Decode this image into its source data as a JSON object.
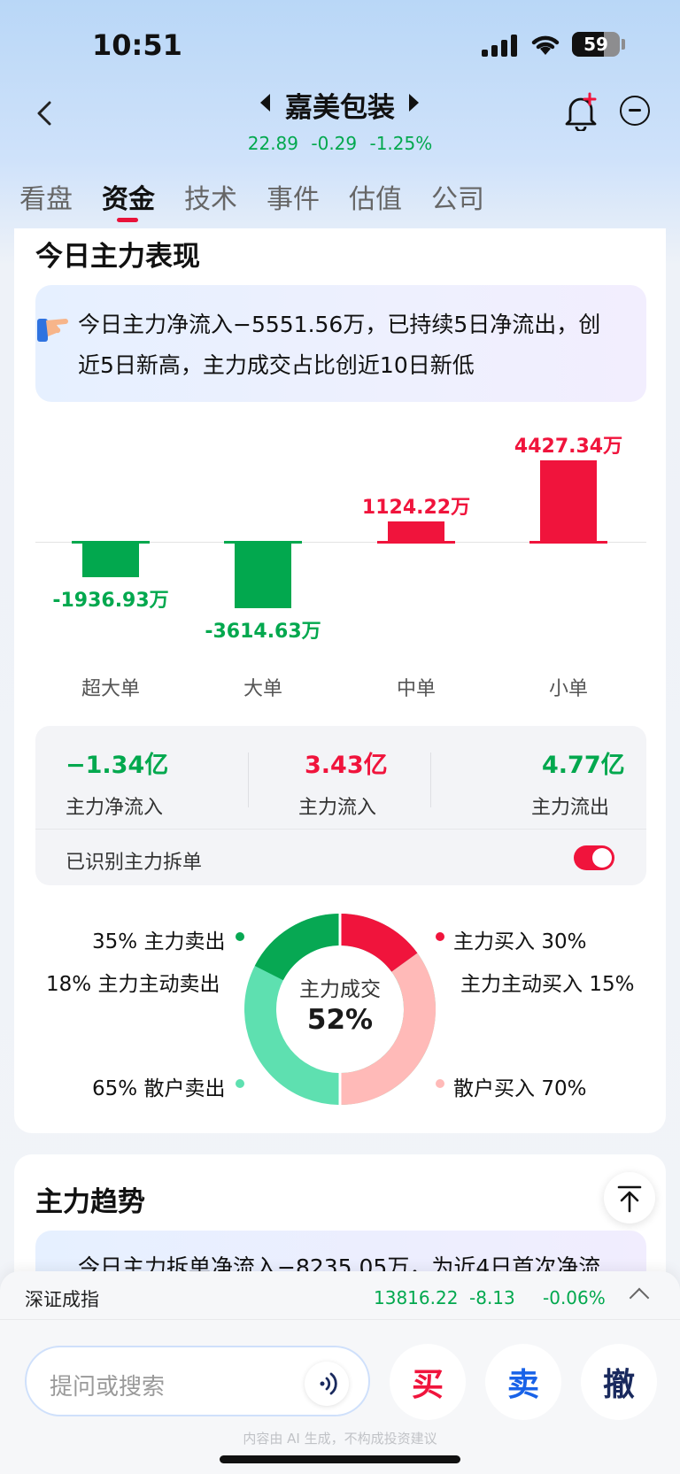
{
  "status_bar": {
    "time": "10:51",
    "battery": "59"
  },
  "header": {
    "stock_name": "嘉美包装",
    "price": "22.89",
    "change": "-0.29",
    "change_pct": "-1.25%"
  },
  "tabs": [
    "看盘",
    "资金",
    "技术",
    "事件",
    "估值",
    "公司"
  ],
  "active_tab": "资金",
  "today": {
    "title": "今日主力表现",
    "insight_line1": "今日主力净流入−5551.56万，已持续5日净流出，创",
    "insight_line2": "近5日新高，主力成交占比创近10日新低",
    "chart_data": {
      "type": "bar",
      "categories": [
        "超大单",
        "大单",
        "中单",
        "小单"
      ],
      "values": [
        -1936.93,
        -3614.63,
        1124.22,
        4427.34
      ],
      "value_labels": [
        "-1936.93万",
        "-3614.63万",
        "1124.22万",
        "4427.34万"
      ],
      "unit": "万",
      "colors": {
        "positive": "#f0143c",
        "negative": "#02a84e"
      }
    },
    "stats": {
      "net_inflow_value": "−1.34亿",
      "net_inflow_label": "主力净流入",
      "inflow_value": "3.43亿",
      "inflow_label": "主力流入",
      "outflow_value": "4.77亿",
      "outflow_label": "主力流出",
      "split_label": "已识别主力拆单",
      "split_enabled": true
    },
    "donut": {
      "center_label": "主力成交",
      "center_value": "52%",
      "main_sell": {
        "pct": "35%",
        "label": "主力卖出"
      },
      "main_active_sell": {
        "pct": "18%",
        "label": "主力主动卖出"
      },
      "retail_sell": {
        "pct": "65%",
        "label": "散户卖出"
      },
      "main_buy": {
        "pct": "30%",
        "label": "主力买入"
      },
      "main_active_buy": {
        "pct": "15%",
        "label": "主力主动买入"
      },
      "retail_buy": {
        "pct": "70%",
        "label": "散户买入"
      },
      "colors": {
        "main_sell": "#07a853",
        "retail_sell": "#5ee0b0",
        "main_buy": "#f0143c",
        "retail_buy": "#ffbab8"
      }
    }
  },
  "trend": {
    "title": "主力趋势",
    "insight": "今日主力拆单净流入−8235.05万，为近4日首次净流"
  },
  "bottom": {
    "index_name": "深证成指",
    "index_value": "13816.22",
    "index_change": "-8.13",
    "index_pct": "-0.06%",
    "search_placeholder": "提问或搜索",
    "buy": "买",
    "sell": "卖",
    "cancel": "撤",
    "disclaimer": "内容由 AI 生成，不构成投资建议"
  }
}
